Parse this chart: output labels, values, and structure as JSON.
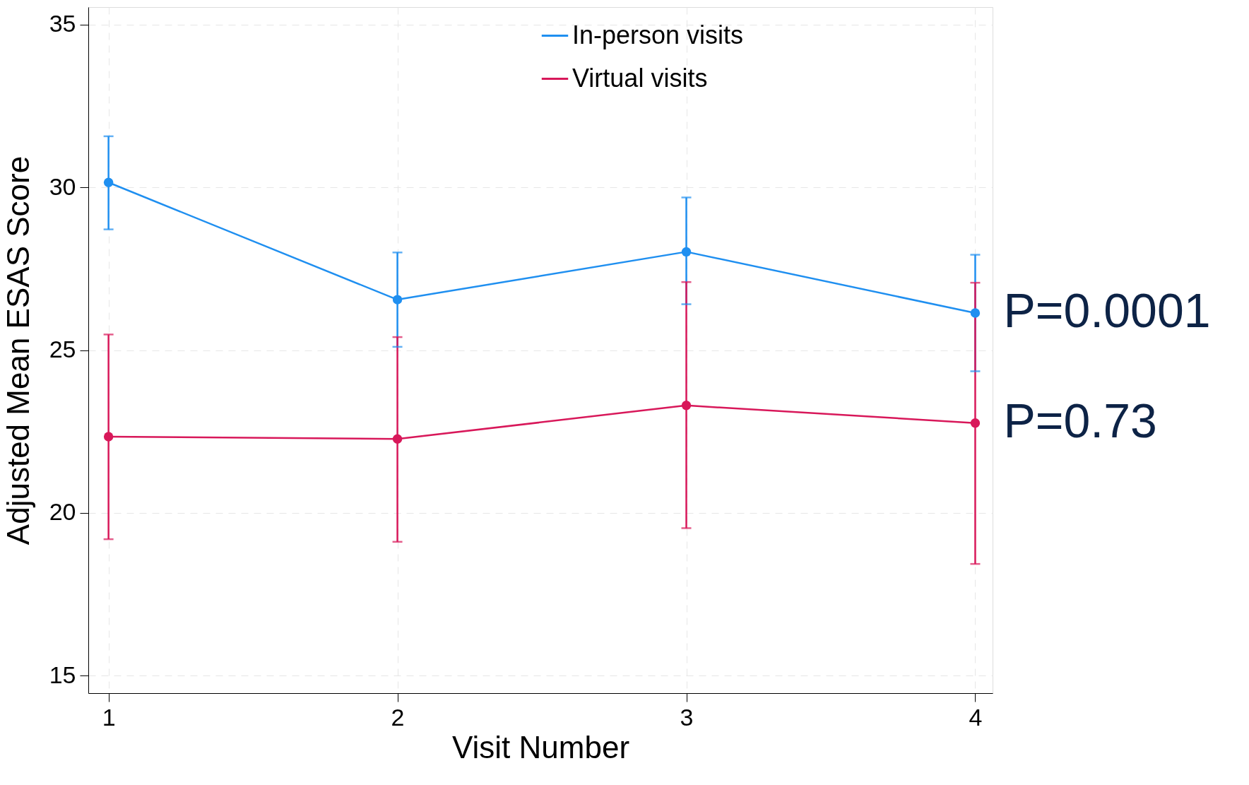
{
  "chart_data": {
    "type": "line",
    "xlabel": "Visit Number",
    "ylabel": "Adjusted Mean ESAS Score",
    "x": [
      1,
      2,
      3,
      4
    ],
    "series": [
      {
        "name": "In-person visits",
        "color": "#1f8ff0",
        "values": [
          30.15,
          26.55,
          28.02,
          26.14
        ],
        "errors": [
          [
            28.71,
            31.57
          ],
          [
            25.1,
            28.0
          ],
          [
            26.41,
            29.69
          ],
          [
            24.35,
            27.93
          ]
        ]
      },
      {
        "name": "Virtual visits",
        "color": "#d8185a",
        "values": [
          22.34,
          22.27,
          23.3,
          22.76
        ],
        "errors": [
          [
            19.19,
            25.48
          ],
          [
            19.11,
            25.4
          ],
          [
            19.53,
            27.09
          ],
          [
            18.43,
            27.07
          ]
        ]
      }
    ],
    "xlim": [
      0.93,
      4.06
    ],
    "xticks": [
      1,
      2,
      3,
      4
    ],
    "ylim": [
      14.46,
      35.54
    ],
    "yticks": [
      15,
      20,
      25,
      30,
      35
    ],
    "grid": true,
    "legend": "top",
    "marker": "circle",
    "line_style": "solid",
    "annotations": [
      {
        "text": "P=0.0001",
        "x": 4,
        "y": 26.14
      },
      {
        "text": "P=0.73",
        "x": 4,
        "y": 22.76
      }
    ]
  }
}
